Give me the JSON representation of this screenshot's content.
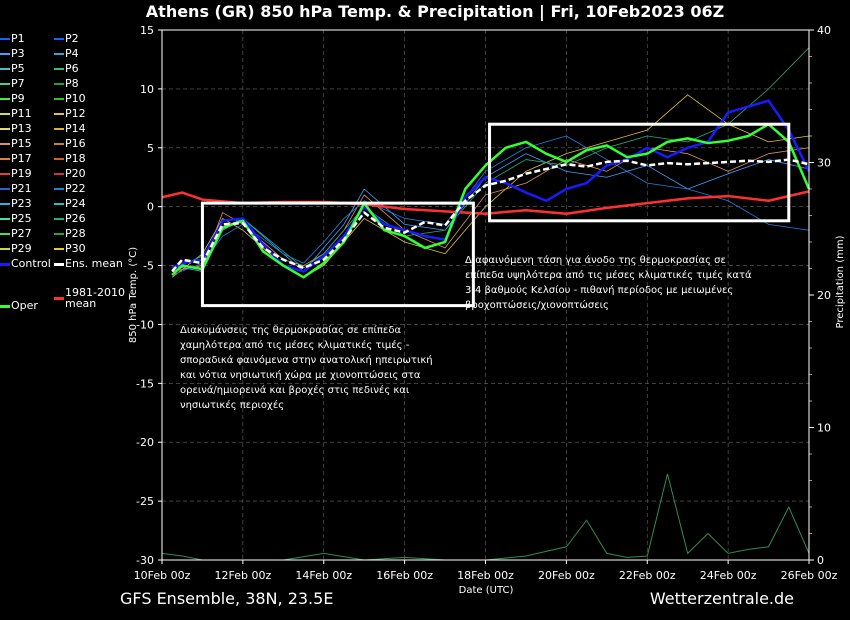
{
  "header": {
    "title": "Athens  (GR)  850 hPa Temp. & Precipitation | Fri, 10Feb2023 06Z"
  },
  "footer": {
    "left": "GFS Ensemble, 38N, 23.5E",
    "right": "Wetterzentrale.de"
  },
  "legend": [
    {
      "label": "P1",
      "color": "#1f5fff"
    },
    {
      "label": "P2",
      "color": "#1f5fff"
    },
    {
      "label": "P3",
      "color": "#40a0ff"
    },
    {
      "label": "P4",
      "color": "#3aa0e0"
    },
    {
      "label": "P5",
      "color": "#40c0c8"
    },
    {
      "label": "P6",
      "color": "#30c070"
    },
    {
      "label": "P7",
      "color": "#40d0a0"
    },
    {
      "label": "P8",
      "color": "#20a040"
    },
    {
      "label": "P9",
      "color": "#50e050"
    },
    {
      "label": "P10",
      "color": "#30c030"
    },
    {
      "label": "P11",
      "color": "#d0e040"
    },
    {
      "label": "P12",
      "color": "#e0c040"
    },
    {
      "label": "P13",
      "color": "#e0e060"
    },
    {
      "label": "P14",
      "color": "#e0b030"
    },
    {
      "label": "P15",
      "color": "#e09060"
    },
    {
      "label": "P16",
      "color": "#c08040"
    },
    {
      "label": "P17",
      "color": "#e08040"
    },
    {
      "label": "P18",
      "color": "#d06030"
    },
    {
      "label": "P19",
      "color": "#e04040"
    },
    {
      "label": "P20",
      "color": "#d03050"
    },
    {
      "label": "P21",
      "color": "#3060d0"
    },
    {
      "label": "P22",
      "color": "#2080e0"
    },
    {
      "label": "P23",
      "color": "#30b0e0"
    },
    {
      "label": "P24",
      "color": "#20c0c0"
    },
    {
      "label": "P25",
      "color": "#40e0b0"
    },
    {
      "label": "P26",
      "color": "#20b080"
    },
    {
      "label": "P27",
      "color": "#40e060"
    },
    {
      "label": "P28",
      "color": "#30a030"
    },
    {
      "label": "P29",
      "color": "#c0e040"
    },
    {
      "label": "P30",
      "color": "#e0d020"
    },
    {
      "label": "Control",
      "color": "#1a1aff"
    },
    {
      "label": "Ens. mean",
      "color": "#ffffff"
    },
    {
      "label": "Oper",
      "color": "#33ff33"
    },
    {
      "label": "1981-2010\nmean",
      "color": "#ff3030"
    }
  ],
  "annotations": {
    "left": "Διακυμάνσεις της θερμοκρασίας σε επίπεδα\nχαμηλότερα από τις μέσες κλιματικές τιμές -\nσποραδικά φαινόμενα στην ανατολική ηπειρωτική\nκαι νότια νησιωτική χώρα με χιονοπτώσεις στα\nορεινά/ημιορεινά και βροχές στις πεδινές και\nνησιωτικές περιοχές",
    "right": "Διαφαινόμενη τάση για άνοδο της θερμοκρασίας σε\nεπίπεδα υψηλότερα από τις μέσες κλιματικές τιμές κατά\n3-4 βαθμούς Κελσίου - πιθανή περίοδος με μειωμένες\nβροχοπτώσεις/χιονοπτώσεις"
  },
  "chart_data": {
    "type": "line",
    "xlabel": "Date (UTC)",
    "ylabel": "850 hPa Temp. (°C)",
    "y2label": "Precipitation (mm)",
    "ylim": [
      -30,
      15
    ],
    "y2lim": [
      0,
      40
    ],
    "yticks": [
      15,
      10,
      5,
      0,
      -5,
      -10,
      -15,
      -20,
      -25,
      -30
    ],
    "y2ticks": [
      40,
      30,
      20,
      10,
      0
    ],
    "xlim_days": [
      0,
      16
    ],
    "xticks": [
      {
        "day": 0,
        "label": "10Feb 00z"
      },
      {
        "day": 2,
        "label": "12Feb 00z"
      },
      {
        "day": 4,
        "label": "14Feb 00z"
      },
      {
        "day": 6,
        "label": "16Feb 00z"
      },
      {
        "day": 8,
        "label": "18Feb 00z"
      },
      {
        "day": 10,
        "label": "20Feb 00z"
      },
      {
        "day": 12,
        "label": "22Feb 00z"
      },
      {
        "day": 14,
        "label": "24Feb 00z"
      },
      {
        "day": 16,
        "label": "26Feb 00z"
      }
    ],
    "grid": true,
    "series": [
      {
        "name": "Ens. mean",
        "color": "#ffffff",
        "x": [
          0.25,
          0.5,
          1,
          1.5,
          2,
          2.5,
          3,
          3.5,
          4,
          4.5,
          5,
          5.5,
          6,
          6.5,
          7,
          7.5,
          8,
          8.5,
          9,
          9.5,
          10,
          10.5,
          11,
          11.5,
          12,
          12.5,
          13,
          13.5,
          14,
          14.5,
          15,
          15.5,
          16
        ],
        "y": [
          -5.5,
          -4.5,
          -4.8,
          -1.5,
          -1.4,
          -3.5,
          -4.5,
          -5.2,
          -4.5,
          -2.8,
          -0.5,
          -1.8,
          -2.2,
          -1.3,
          -1.6,
          0.5,
          1.8,
          2.2,
          2.8,
          3.2,
          3.6,
          3.4,
          3.8,
          3.9,
          3.5,
          3.7,
          3.6,
          3.7,
          3.8,
          3.9,
          3.8,
          4.0,
          3.6
        ]
      },
      {
        "name": "Oper",
        "color": "#33ff33",
        "x": [
          0.25,
          0.5,
          1,
          1.5,
          2,
          2.5,
          3,
          3.5,
          4,
          4.5,
          5,
          5.5,
          6,
          6.5,
          7,
          7.5,
          8,
          8.5,
          9,
          9.5,
          10,
          10.5,
          11,
          11.5,
          12,
          12.5,
          13,
          13.5,
          14,
          14.5,
          15,
          15.5,
          16
        ],
        "y": [
          -5.8,
          -5.0,
          -5.3,
          -1.8,
          -1.2,
          -3.8,
          -5.0,
          -6.0,
          -4.8,
          -3.0,
          0.3,
          -2.0,
          -2.5,
          -3.5,
          -3.0,
          1.5,
          3.5,
          5.0,
          5.5,
          4.5,
          3.8,
          4.8,
          5.2,
          4.2,
          4.5,
          5.5,
          5.8,
          5.4,
          5.6,
          6.0,
          7.0,
          5.5,
          1.5
        ]
      },
      {
        "name": "Control",
        "color": "#1a1aff",
        "x": [
          0.25,
          0.5,
          1,
          1.5,
          2,
          2.5,
          3,
          3.5,
          4,
          4.5,
          5,
          5.5,
          6,
          6.5,
          7,
          7.5,
          8,
          8.5,
          9,
          9.5,
          10,
          10.5,
          11,
          11.5,
          12,
          12.5,
          13,
          13.5,
          14,
          14.5,
          15,
          15.5,
          16
        ],
        "y": [
          -5.2,
          -4.8,
          -4.5,
          -1.2,
          -1.0,
          -3.2,
          -5.0,
          -5.5,
          -4.2,
          -2.5,
          0.0,
          -1.5,
          -2.0,
          -2.5,
          -2.8,
          0.8,
          2.5,
          2.0,
          1.2,
          0.5,
          1.5,
          2.0,
          3.5,
          4.0,
          5.0,
          4.2,
          5.0,
          5.5,
          8.0,
          8.5,
          9.0,
          6.5,
          3.0
        ]
      },
      {
        "name": "1981-2010 mean",
        "color": "#ff3030",
        "x": [
          0,
          0.5,
          1,
          2,
          3,
          4,
          5,
          6,
          7,
          8,
          9,
          10,
          11,
          12,
          13,
          14,
          15,
          16
        ],
        "y": [
          0.8,
          1.2,
          0.6,
          0.3,
          0.4,
          0.4,
          0.2,
          -0.2,
          -0.4,
          -0.6,
          -0.3,
          -0.6,
          -0.1,
          0.3,
          0.7,
          0.9,
          0.5,
          1.3
        ]
      },
      {
        "name": "P3",
        "color": "#40a0ff",
        "x": [
          0.25,
          1,
          1.5,
          2,
          3,
          3.5,
          4,
          4.5,
          5,
          6,
          7,
          8,
          9,
          10,
          11,
          12,
          13,
          14,
          15,
          16
        ],
        "y": [
          -5.0,
          -5.5,
          -2.0,
          -1.0,
          -4.0,
          -5.5,
          -3.5,
          -1.5,
          1.5,
          -1.5,
          -2.0,
          2.5,
          4.5,
          3.0,
          2.5,
          3.5,
          1.5,
          2.8,
          4.0,
          3.2
        ]
      },
      {
        "name": "P12",
        "color": "#e0c040",
        "x": [
          0.25,
          1,
          1.5,
          2,
          3,
          3.5,
          4,
          4.5,
          5,
          6,
          7,
          8,
          9,
          10,
          11,
          12,
          13,
          14,
          15,
          16
        ],
        "y": [
          -6.0,
          -4.0,
          -1.0,
          -2.0,
          -5.0,
          -6.0,
          -5.0,
          -3.0,
          -1.0,
          -3.0,
          -4.0,
          0.0,
          3.0,
          4.5,
          5.5,
          6.5,
          9.5,
          7.0,
          5.5,
          6.0
        ]
      },
      {
        "name": "P15",
        "color": "#e09060",
        "x": [
          0.25,
          1,
          1.5,
          2,
          3,
          3.5,
          4,
          4.5,
          5,
          6,
          7,
          8,
          9,
          10,
          11,
          12,
          13,
          14,
          15,
          16
        ],
        "y": [
          -5.5,
          -5.0,
          -0.5,
          -1.5,
          -4.5,
          -5.0,
          -4.0,
          -2.0,
          1.0,
          -2.0,
          -3.5,
          1.0,
          2.0,
          4.0,
          3.0,
          5.0,
          4.5,
          3.0,
          4.5,
          5.0
        ]
      },
      {
        "name": "P22",
        "color": "#2080e0",
        "x": [
          0.25,
          1,
          1.5,
          2,
          3,
          3.5,
          4,
          4.5,
          5,
          6,
          7,
          8,
          9,
          10,
          11,
          12,
          13,
          14,
          15,
          16
        ],
        "y": [
          -5.8,
          -4.8,
          -2.5,
          -1.5,
          -4.0,
          -4.8,
          -3.0,
          -1.0,
          0.5,
          -1.0,
          -1.5,
          3.0,
          5.0,
          6.0,
          4.0,
          2.0,
          1.5,
          0.5,
          -1.5,
          -2.0
        ]
      },
      {
        "name": "P26",
        "color": "#20b080",
        "x": [
          0.25,
          1,
          1.5,
          2,
          3,
          3.5,
          4,
          4.5,
          5,
          6,
          7,
          8,
          9,
          10,
          11,
          12,
          13,
          14,
          15,
          16
        ],
        "y": [
          -5.3,
          -4.2,
          -1.8,
          -1.0,
          -3.8,
          -5.2,
          -4.0,
          -2.0,
          0.0,
          -2.5,
          -2.0,
          2.0,
          4.0,
          3.5,
          5.0,
          6.0,
          5.5,
          7.0,
          10.0,
          13.5
        ]
      }
    ],
    "precipitation": {
      "x": [
        0,
        0.5,
        1,
        2,
        3,
        4,
        5,
        6,
        7,
        8,
        9,
        10,
        10.5,
        11,
        11.5,
        12,
        12.5,
        13,
        13.5,
        14,
        14.5,
        15,
        15.5,
        16
      ],
      "y": [
        0.5,
        0.3,
        0.0,
        0.0,
        0.0,
        0.5,
        0.0,
        0.2,
        0.0,
        0.0,
        0.3,
        1.0,
        3.0,
        0.5,
        0.2,
        0.3,
        6.5,
        0.5,
        2.0,
        0.5,
        0.8,
        1.0,
        4.0,
        0.5
      ]
    },
    "boxes": [
      {
        "x0": 1.0,
        "x1": 7.7,
        "y0": -8.4,
        "y1": 0.3
      },
      {
        "x0": 8.1,
        "x1": 15.5,
        "y0": -1.2,
        "y1": 7.0
      }
    ]
  }
}
